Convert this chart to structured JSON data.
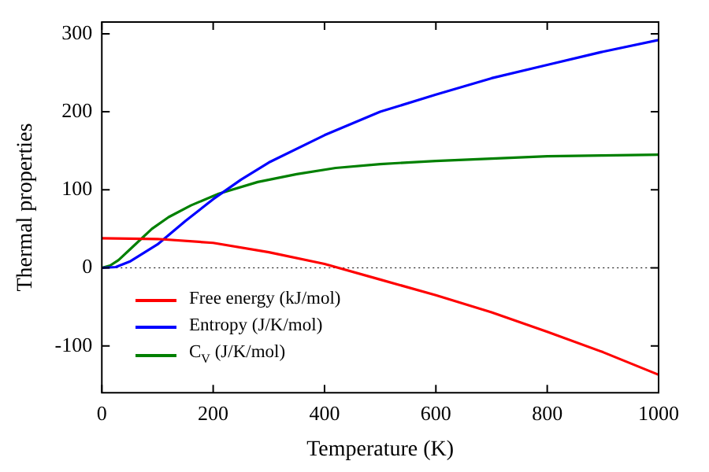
{
  "chart_data": {
    "type": "line",
    "xlabel": "Temperature (K)",
    "ylabel": "Thermal properties",
    "xlim": [
      0,
      1000
    ],
    "ylim": [
      -160,
      315
    ],
    "xticks": [
      0,
      200,
      400,
      600,
      800,
      1000
    ],
    "yticks": [
      -100,
      0,
      100,
      200,
      300
    ],
    "grid": false,
    "legend": "bottom left",
    "marker": "none",
    "line_style": "solid",
    "ref_lines": [
      {
        "axis": "y",
        "value": 0,
        "color": "#000000",
        "line_style": "dotted"
      }
    ],
    "series": [
      {
        "name": "Free energy (kJ/mol)",
        "color": "#ff0000",
        "x": [
          0,
          100,
          200,
          300,
          400,
          500,
          600,
          700,
          800,
          900,
          1000
        ],
        "values": [
          38,
          37,
          32,
          20,
          5,
          -15,
          -35,
          -57,
          -82,
          -108,
          -137
        ]
      },
      {
        "name": "Entropy (J/K/mol)",
        "color": "#0000ff",
        "x": [
          0,
          25,
          50,
          100,
          150,
          200,
          250,
          300,
          400,
          500,
          600,
          700,
          800,
          900,
          1000
        ],
        "values": [
          0,
          1,
          8,
          30,
          60,
          88,
          113,
          135,
          170,
          200,
          222,
          243,
          260,
          277,
          292
        ]
      },
      {
        "name": "C$_{V}$ (J/K/mol)",
        "color": "#008000",
        "x": [
          0,
          15,
          30,
          60,
          90,
          120,
          160,
          210,
          280,
          350,
          420,
          500,
          600,
          700,
          800,
          900,
          1000
        ],
        "values": [
          0,
          3,
          10,
          30,
          50,
          65,
          80,
          95,
          110,
          120,
          128,
          133,
          137,
          140,
          143,
          144,
          145
        ]
      }
    ]
  }
}
